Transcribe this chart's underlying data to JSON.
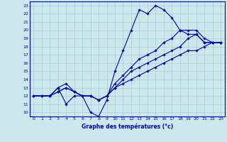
{
  "title": "Graphe des températures (°c)",
  "bg_color": "#cce8ec",
  "grid_color": "#aacccc",
  "line_color": "#0000bb",
  "xlim": [
    -0.5,
    23.5
  ],
  "ylim": [
    9.5,
    23.5
  ],
  "xticks": [
    0,
    1,
    2,
    3,
    4,
    5,
    6,
    7,
    8,
    9,
    10,
    11,
    12,
    13,
    14,
    15,
    16,
    17,
    18,
    19,
    20,
    21,
    22,
    23
  ],
  "yticks": [
    10,
    11,
    12,
    13,
    14,
    15,
    16,
    17,
    18,
    19,
    20,
    21,
    22,
    23
  ],
  "series": [
    {
      "x": [
        0,
        1,
        2,
        3,
        4,
        5,
        6,
        7,
        8,
        9,
        10,
        11,
        12,
        13,
        14,
        15,
        16,
        17,
        18,
        19,
        20,
        21,
        22,
        23
      ],
      "y": [
        12,
        12,
        12,
        13,
        11,
        12,
        12,
        10,
        9.5,
        11.5,
        15,
        17.5,
        20,
        22.5,
        22,
        23,
        22.5,
        21.5,
        20,
        19.5,
        19.5,
        18.5,
        18.5,
        18.5
      ]
    },
    {
      "x": [
        0,
        1,
        2,
        3,
        4,
        5,
        6,
        7,
        8,
        9,
        10,
        11,
        12,
        13,
        14,
        15,
        16,
        17,
        18,
        19,
        20,
        21,
        22,
        23
      ],
      "y": [
        12,
        12,
        12,
        12.5,
        13,
        12.5,
        12,
        12,
        11.5,
        12,
        13,
        13.5,
        14,
        14.5,
        15,
        15.5,
        16,
        16.5,
        17,
        17.5,
        17.5,
        18,
        18.5,
        18.5
      ]
    },
    {
      "x": [
        0,
        1,
        2,
        3,
        4,
        5,
        6,
        7,
        8,
        9,
        10,
        11,
        12,
        13,
        14,
        15,
        16,
        17,
        18,
        19,
        20,
        21,
        22,
        23
      ],
      "y": [
        12,
        12,
        12,
        12.5,
        13,
        12.5,
        12,
        12,
        11.5,
        12,
        13,
        14,
        15,
        15.5,
        16,
        16.5,
        17,
        17.5,
        18,
        19,
        19.5,
        18.5,
        18.5,
        18.5
      ]
    },
    {
      "x": [
        0,
        1,
        2,
        3,
        4,
        5,
        6,
        7,
        8,
        9,
        10,
        11,
        12,
        13,
        14,
        15,
        16,
        17,
        18,
        19,
        20,
        21,
        22,
        23
      ],
      "y": [
        12,
        12,
        12,
        13,
        13.5,
        12.5,
        12,
        12,
        11.5,
        12,
        13.5,
        14.5,
        15.5,
        16.5,
        17,
        17.5,
        18.5,
        19,
        20,
        20,
        20,
        19,
        18.5,
        18.5
      ]
    }
  ]
}
